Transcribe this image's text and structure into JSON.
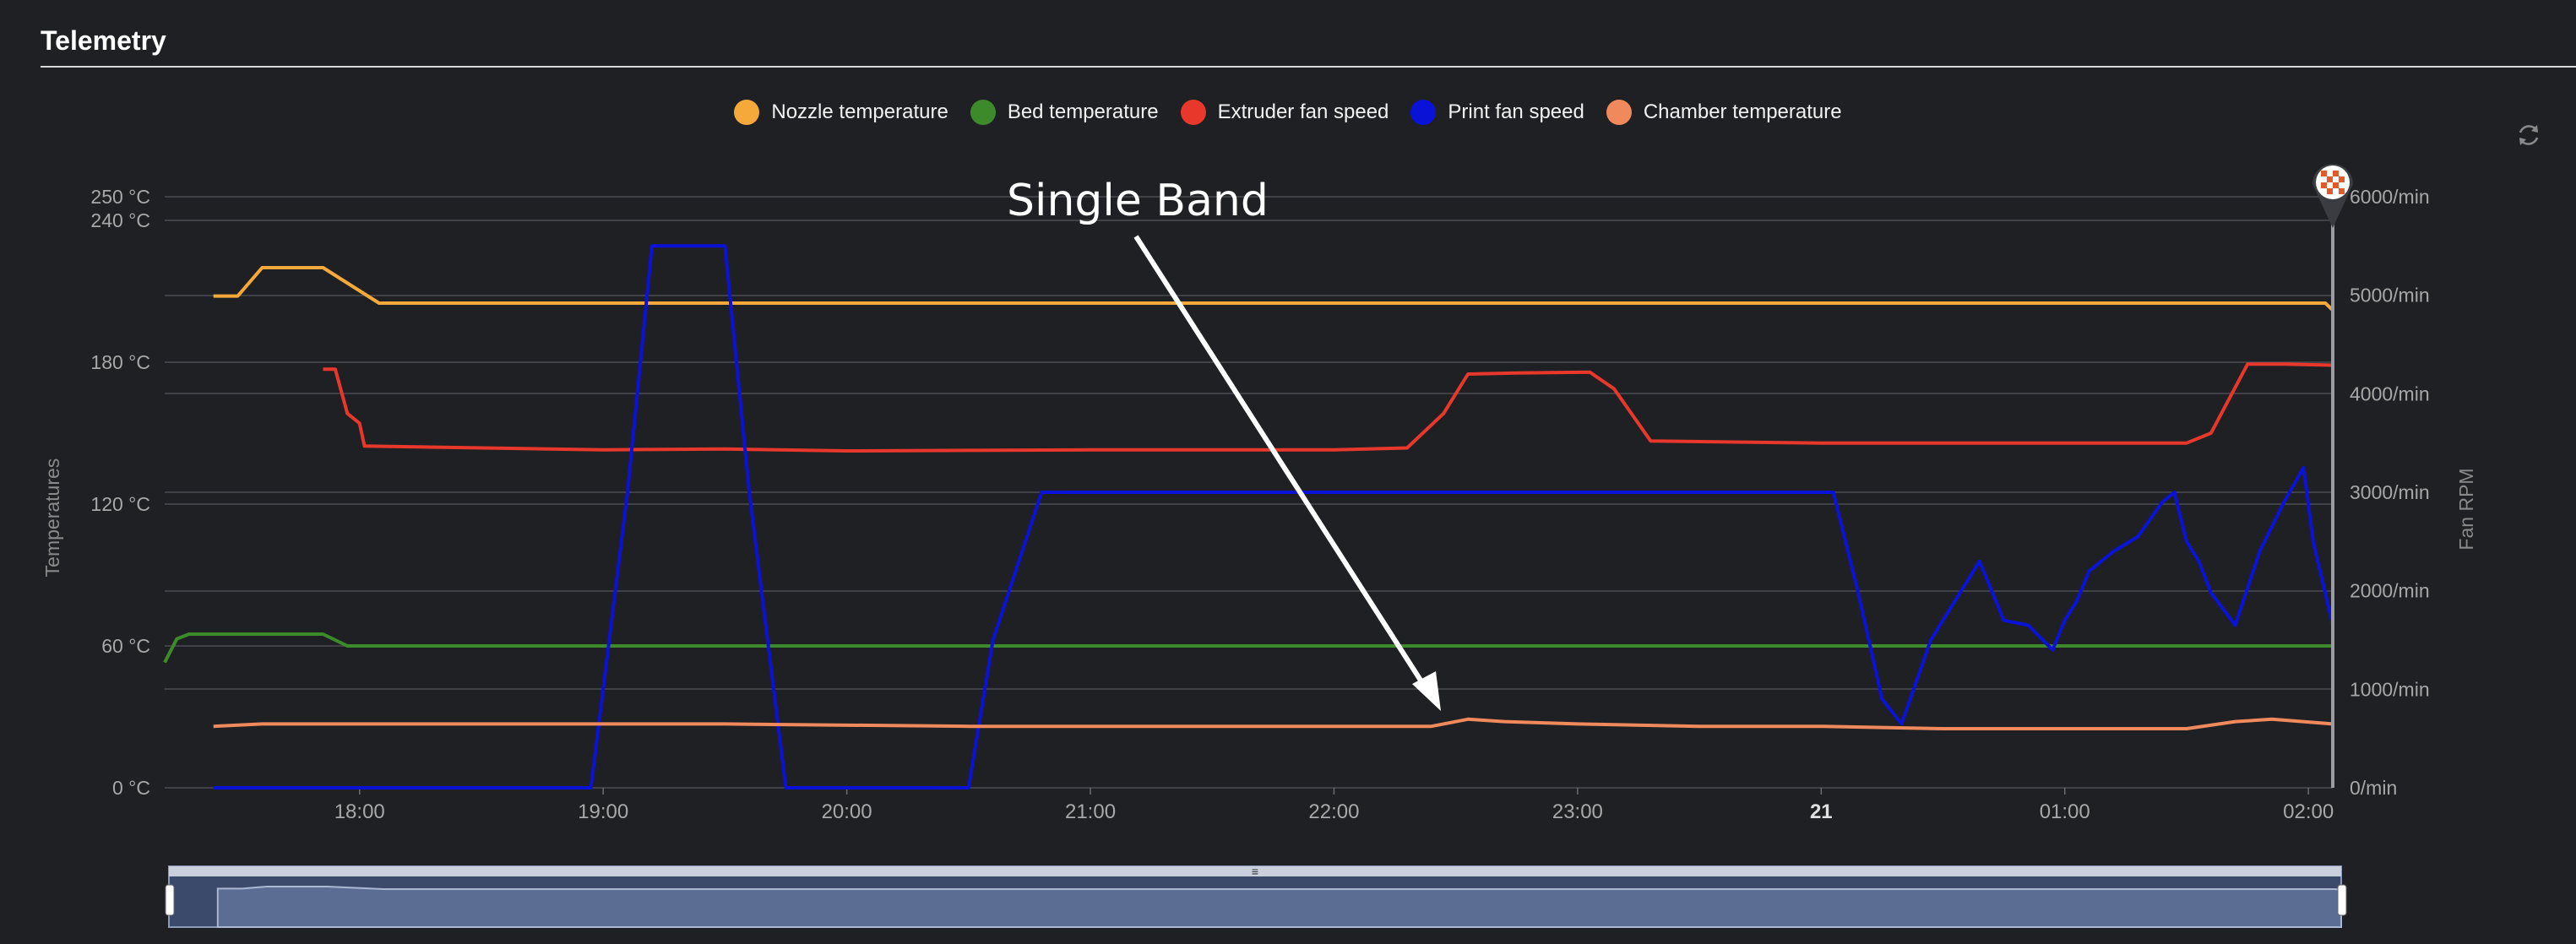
{
  "header": {
    "title": "Telemetry"
  },
  "legend": [
    {
      "label": "Nozzle temperature",
      "color": "#f4a93a"
    },
    {
      "label": "Bed temperature",
      "color": "#3d8a2a"
    },
    {
      "label": "Extruder fan speed",
      "color": "#e8382c"
    },
    {
      "label": "Print fan speed",
      "color": "#0a12d8"
    },
    {
      "label": "Chamber temperature",
      "color": "#f08a5d"
    }
  ],
  "annotation": {
    "text": "Single Band"
  },
  "icons": {
    "refresh": "refresh-icon",
    "marker": "checkered-flag-marker-icon"
  },
  "chart_data": {
    "type": "line",
    "left_axis": {
      "label": "Temperatures",
      "ticks": [
        "0 °C",
        "60 °C",
        "120 °C",
        "180 °C",
        "240 °C",
        "250 °C"
      ],
      "tick_values": [
        0,
        60,
        120,
        180,
        240,
        250
      ],
      "range": [
        0,
        250
      ],
      "unit": "°C"
    },
    "right_axis": {
      "label": "Fan RPM",
      "ticks": [
        "0/min",
        "1000/min",
        "2000/min",
        "3000/min",
        "4000/min",
        "5000/min",
        "6000/min"
      ],
      "tick_values": [
        0,
        1000,
        2000,
        3000,
        4000,
        5000,
        6000
      ],
      "range": [
        0,
        6000
      ],
      "unit": "/min"
    },
    "x_axis": {
      "ticks": [
        "18:00",
        "19:00",
        "20:00",
        "21:00",
        "22:00",
        "23:00",
        "21",
        "01:00",
        "02:00"
      ],
      "tick_hours": [
        18,
        19,
        20,
        21,
        22,
        23,
        24,
        25,
        26
      ],
      "bold_tick": "21",
      "range_hours": [
        17.2,
        26.1
      ]
    },
    "grid": true,
    "legend_position": "top-center",
    "series": [
      {
        "name": "Nozzle temperature",
        "axis": "left",
        "color": "#f4a93a",
        "points": [
          [
            17.4,
            208
          ],
          [
            17.5,
            208
          ],
          [
            17.6,
            220
          ],
          [
            17.85,
            220
          ],
          [
            18.08,
            205
          ],
          [
            19.5,
            205
          ],
          [
            20.5,
            205
          ],
          [
            21.5,
            205
          ],
          [
            22.5,
            205
          ],
          [
            23.5,
            205
          ],
          [
            24.5,
            205
          ],
          [
            25.5,
            205
          ],
          [
            26.07,
            205
          ],
          [
            26.1,
            202
          ]
        ]
      },
      {
        "name": "Bed temperature",
        "axis": "left",
        "color": "#3d8a2a",
        "points": [
          [
            17.2,
            53
          ],
          [
            17.25,
            63
          ],
          [
            17.3,
            65
          ],
          [
            17.85,
            65
          ],
          [
            17.95,
            60
          ],
          [
            26.1,
            60
          ]
        ]
      },
      {
        "name": "Extruder fan speed",
        "axis": "right",
        "color": "#e8382c",
        "points": [
          [
            17.85,
            4250
          ],
          [
            17.9,
            4250
          ],
          [
            17.95,
            3800
          ],
          [
            18.0,
            3700
          ],
          [
            18.02,
            3470
          ],
          [
            19.0,
            3430
          ],
          [
            19.5,
            3440
          ],
          [
            20.0,
            3420
          ],
          [
            21.0,
            3430
          ],
          [
            22.0,
            3430
          ],
          [
            22.3,
            3450
          ],
          [
            22.45,
            3800
          ],
          [
            22.55,
            4200
          ],
          [
            22.75,
            4210
          ],
          [
            23.05,
            4220
          ],
          [
            23.15,
            4050
          ],
          [
            23.3,
            3520
          ],
          [
            24.0,
            3500
          ],
          [
            25.0,
            3500
          ],
          [
            25.5,
            3500
          ],
          [
            25.6,
            3600
          ],
          [
            25.75,
            4300
          ],
          [
            25.9,
            4300
          ],
          [
            26.1,
            4290
          ]
        ]
      },
      {
        "name": "Print fan speed",
        "axis": "right",
        "color": "#0a12d8",
        "points": [
          [
            17.4,
            0
          ],
          [
            18.95,
            0
          ],
          [
            19.1,
            3000
          ],
          [
            19.2,
            5500
          ],
          [
            19.5,
            5500
          ],
          [
            19.6,
            3000
          ],
          [
            19.75,
            0
          ],
          [
            20.5,
            0
          ],
          [
            20.6,
            1500
          ],
          [
            20.8,
            3000
          ],
          [
            24.05,
            3000
          ],
          [
            24.15,
            2000
          ],
          [
            24.25,
            900
          ],
          [
            24.33,
            650
          ],
          [
            24.45,
            1500
          ],
          [
            24.55,
            1900
          ],
          [
            24.6,
            2100
          ],
          [
            24.65,
            2300
          ],
          [
            24.7,
            2000
          ],
          [
            24.75,
            1700
          ],
          [
            24.85,
            1650
          ],
          [
            24.95,
            1400
          ],
          [
            25.0,
            1700
          ],
          [
            25.05,
            1900
          ],
          [
            25.1,
            2200
          ],
          [
            25.2,
            2400
          ],
          [
            25.3,
            2550
          ],
          [
            25.4,
            2900
          ],
          [
            25.45,
            3000
          ],
          [
            25.5,
            2500
          ],
          [
            25.55,
            2300
          ],
          [
            25.6,
            1980
          ],
          [
            25.7,
            1650
          ],
          [
            25.8,
            2400
          ],
          [
            25.9,
            2900
          ],
          [
            25.98,
            3250
          ],
          [
            26.02,
            2500
          ],
          [
            26.1,
            1650
          ]
        ]
      },
      {
        "name": "Chamber temperature",
        "axis": "left",
        "color": "#f08a5d",
        "points": [
          [
            17.4,
            26
          ],
          [
            17.6,
            27
          ],
          [
            18.5,
            27
          ],
          [
            19.5,
            27
          ],
          [
            20.5,
            26
          ],
          [
            21.5,
            26
          ],
          [
            22.0,
            26
          ],
          [
            22.4,
            26
          ],
          [
            22.55,
            29
          ],
          [
            22.7,
            28
          ],
          [
            23.0,
            27
          ],
          [
            23.5,
            26
          ],
          [
            24.0,
            26
          ],
          [
            24.5,
            25
          ],
          [
            25.5,
            25
          ],
          [
            25.7,
            28
          ],
          [
            25.85,
            29
          ],
          [
            26.1,
            27
          ]
        ]
      }
    ]
  },
  "navigator": {
    "label": "time range navigator"
  }
}
